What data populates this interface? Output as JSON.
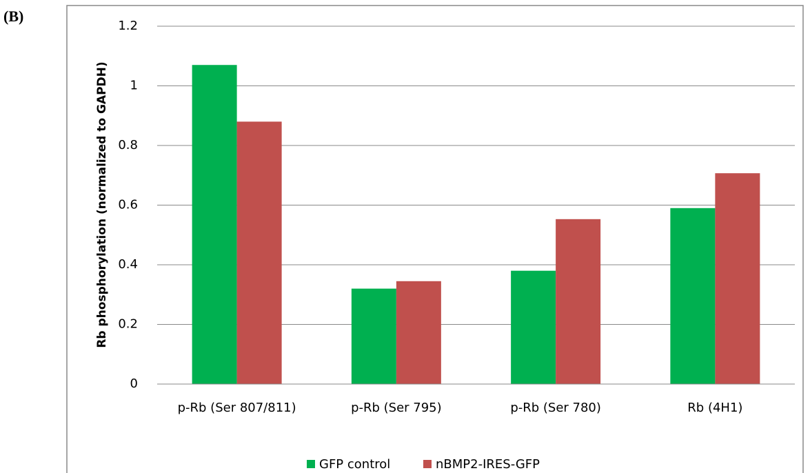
{
  "chart_data": {
    "type": "bar",
    "panel_label": "(B)",
    "y_label": "Rb phosphorylation (normalized to GAPDH)",
    "categories": [
      "p-Rb (Ser 807/811)",
      "p-Rb (Ser 795)",
      "p-Rb (Ser 780)",
      "Rb (4H1)"
    ],
    "series": [
      {
        "name": "GFP control",
        "color": "#00b050",
        "values": [
          1.07,
          0.32,
          0.38,
          0.59
        ]
      },
      {
        "name": "nBMP2-IRES-GFP",
        "color": "#c0504d",
        "values": [
          0.88,
          0.345,
          0.553,
          0.707
        ]
      }
    ],
    "ylim": [
      0,
      1.2
    ],
    "yticks": [
      0,
      0.2,
      0.4,
      0.6,
      0.8,
      1,
      1.2
    ],
    "grid": true,
    "legend": "bottom"
  }
}
